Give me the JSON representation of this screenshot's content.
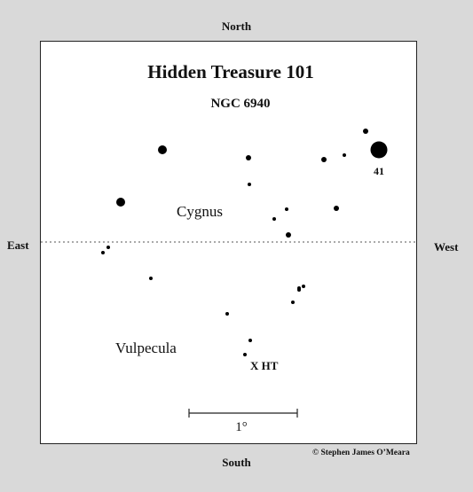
{
  "directions": {
    "north": "North",
    "south": "South",
    "east": "East",
    "west": "West"
  },
  "credit": "© Stephen James O’Meara",
  "chart": {
    "title": "Hidden Treasure 101",
    "subtitle": "NGC 6940",
    "constellations": [
      "Cygnus",
      "Vulpecula"
    ],
    "star_label": "41",
    "target_label": "X HT",
    "scale_label": "1°"
  }
}
